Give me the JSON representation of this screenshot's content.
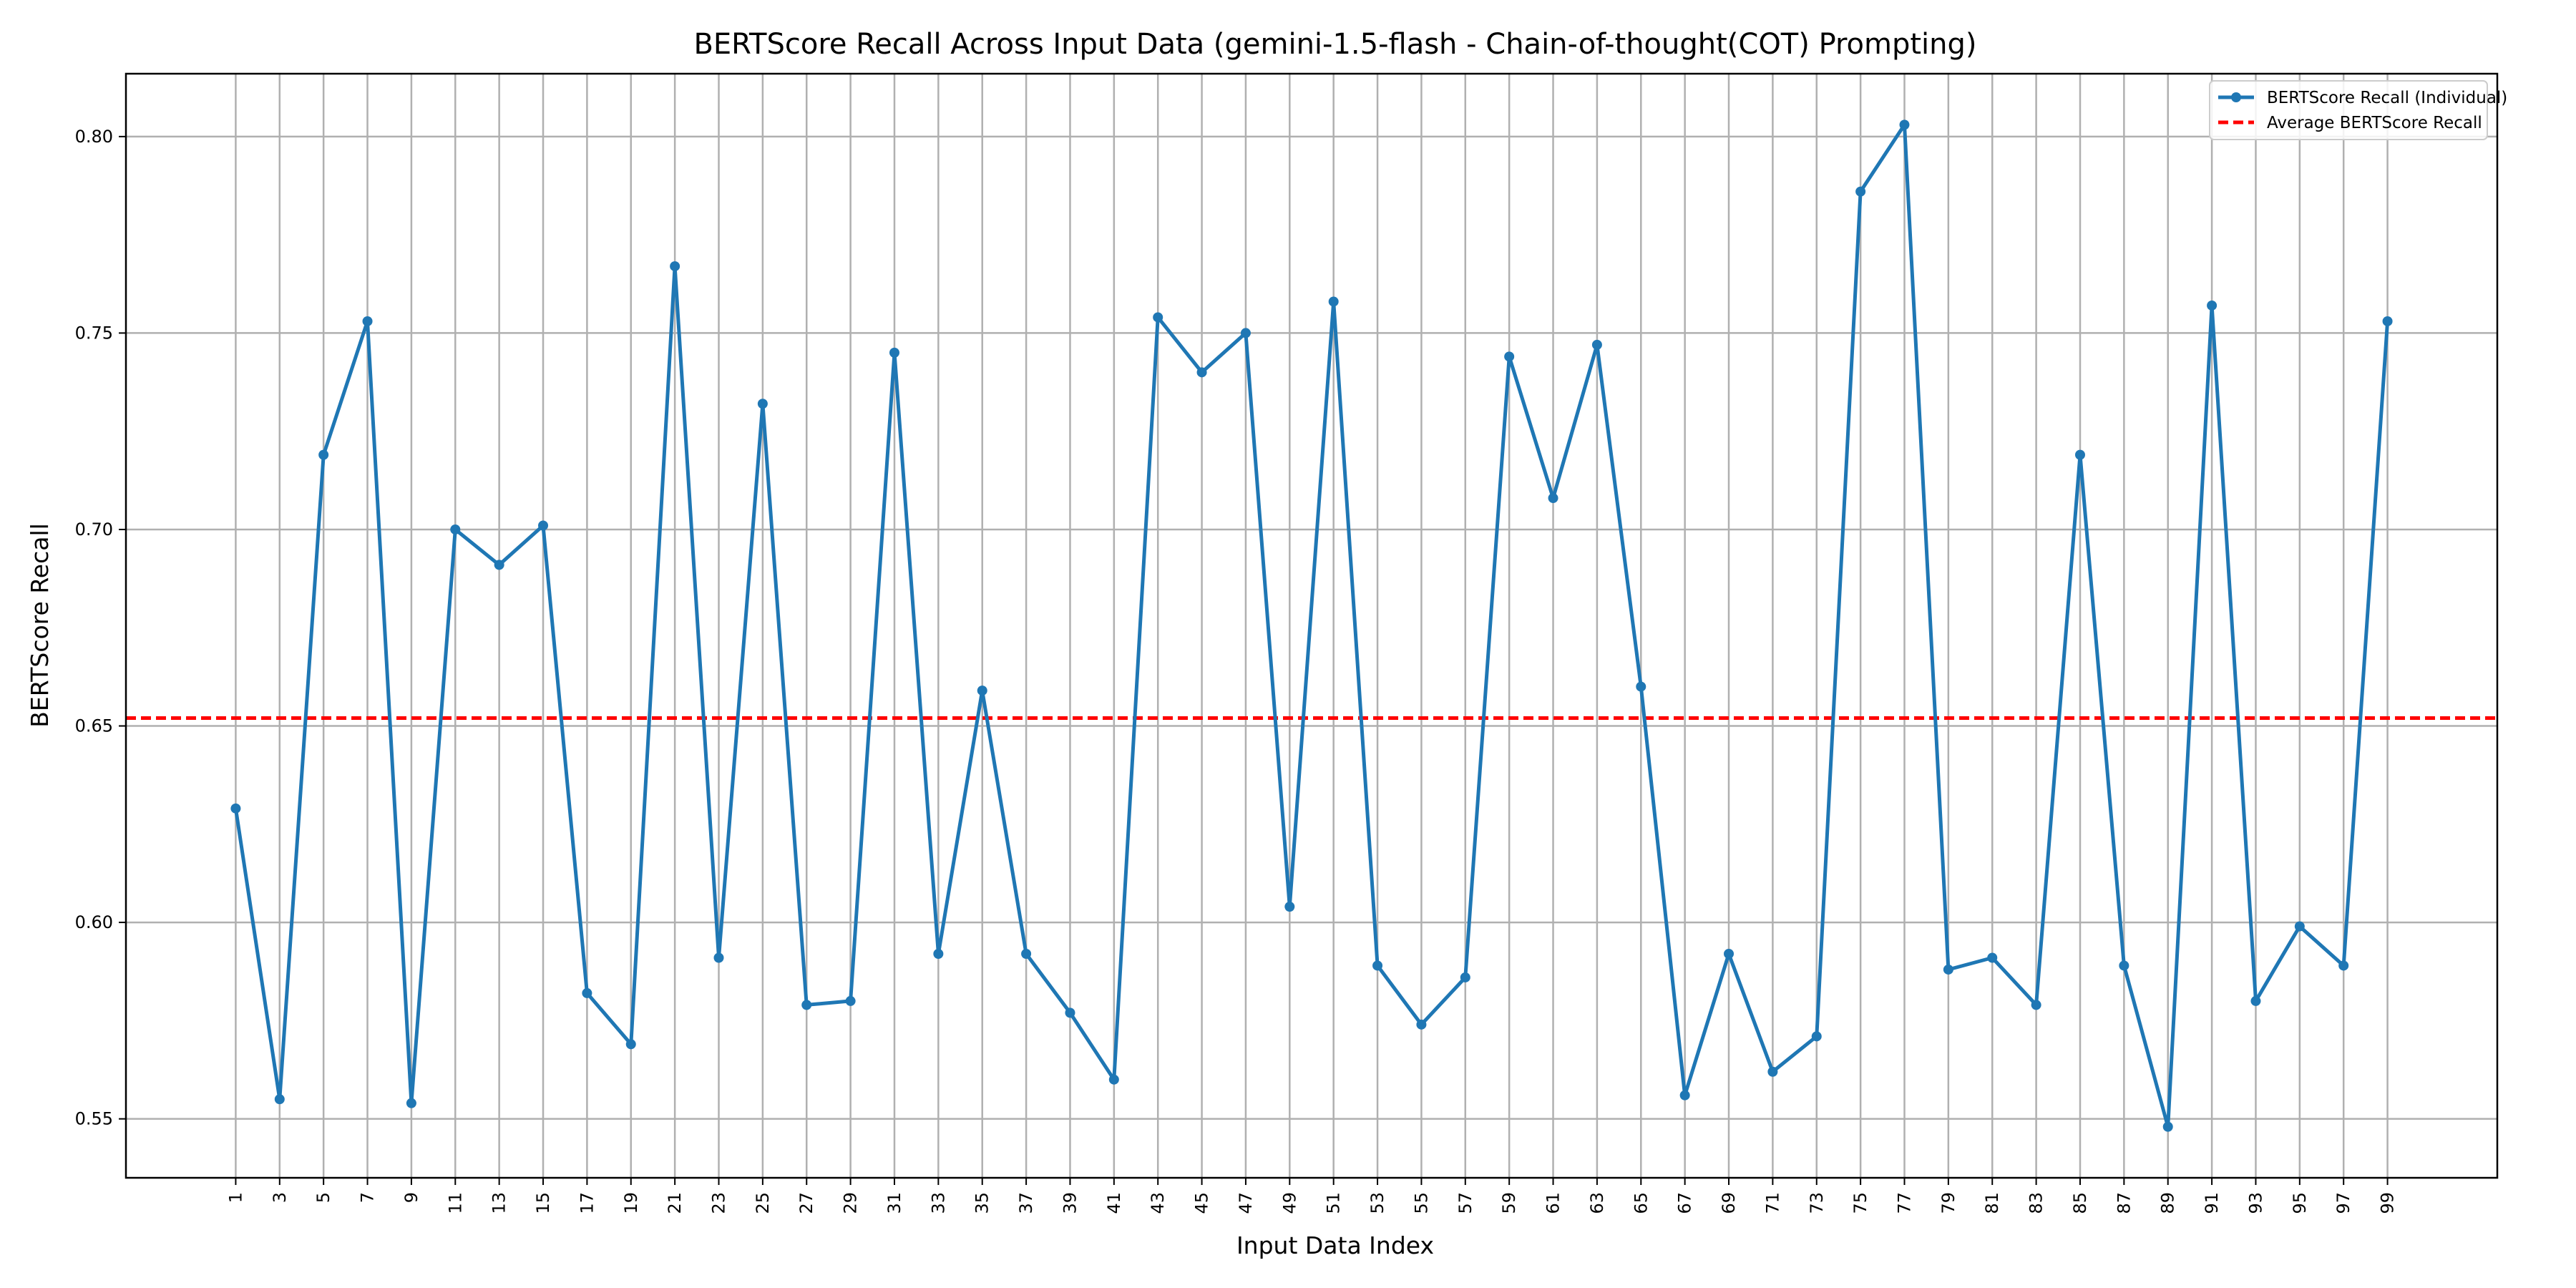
{
  "chart_data": {
    "type": "line",
    "title": "BERTScore Recall Across Input Data (gemini-1.5-flash - Chain-of-thought(COT) Prompting)",
    "xlabel": "Input Data Index",
    "ylabel": "BERTScore Recall",
    "x": [
      1,
      3,
      5,
      7,
      9,
      11,
      13,
      15,
      17,
      19,
      21,
      23,
      25,
      27,
      29,
      31,
      33,
      35,
      37,
      39,
      41,
      43,
      45,
      47,
      49,
      51,
      53,
      55,
      57,
      59,
      61,
      63,
      65,
      67,
      69,
      71,
      73,
      75,
      77,
      79,
      81,
      83,
      85,
      87,
      89,
      91,
      93,
      95,
      97,
      99
    ],
    "xlim": [
      -4,
      104
    ],
    "ylim": [
      0.535,
      0.816
    ],
    "yticks": [
      0.55,
      0.6,
      0.65,
      0.7,
      0.75,
      0.8
    ],
    "ytick_labels": [
      "0.55",
      "0.60",
      "0.65",
      "0.70",
      "0.75",
      "0.80"
    ],
    "grid": true,
    "legend_position": "top-right",
    "series": [
      {
        "name": "BERTScore Recall (Individual)",
        "color": "#1f77b4",
        "style": "solid-line-with-dot-markers",
        "values": [
          0.629,
          0.555,
          0.719,
          0.753,
          0.554,
          0.7,
          0.691,
          0.701,
          0.582,
          0.569,
          0.767,
          0.591,
          0.732,
          0.579,
          0.58,
          0.745,
          0.592,
          0.659,
          0.592,
          0.577,
          0.56,
          0.754,
          0.74,
          0.75,
          0.604,
          0.758,
          0.589,
          0.574,
          0.586,
          0.744,
          0.708,
          0.747,
          0.66,
          0.556,
          0.592,
          0.562,
          0.571,
          0.786,
          0.803,
          0.588,
          0.591,
          0.579,
          0.719,
          0.589,
          0.548,
          0.757,
          0.58,
          0.599,
          0.589,
          0.753
        ]
      },
      {
        "name": "Average BERTScore Recall",
        "color": "#ff0000",
        "style": "dashed-horizontal-line",
        "value": 0.652
      }
    ]
  }
}
